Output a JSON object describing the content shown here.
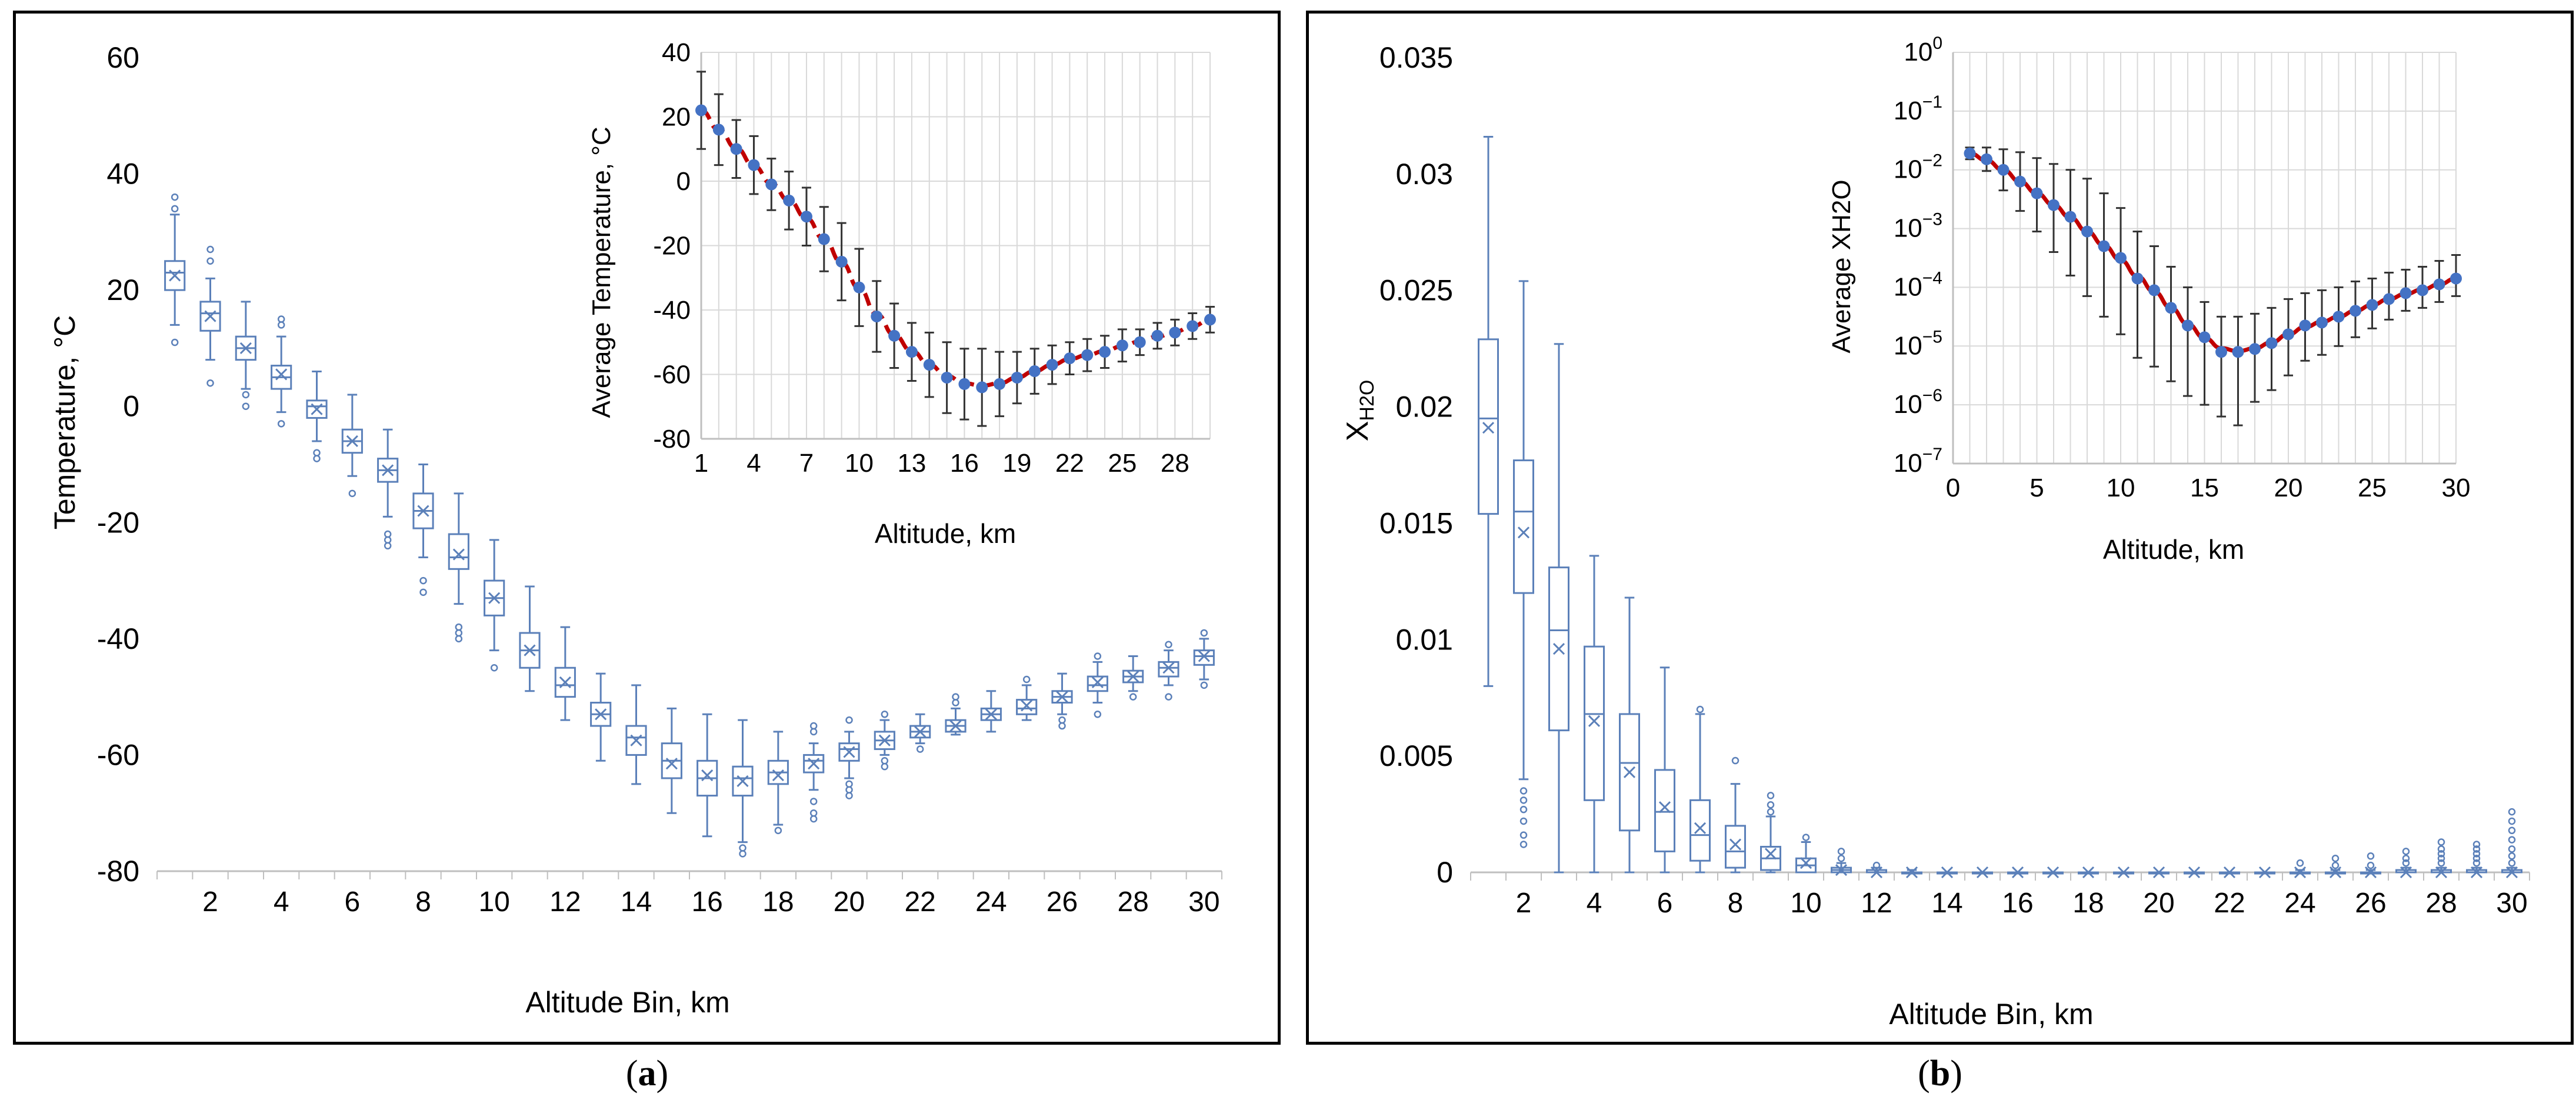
{
  "captions": {
    "a": "a",
    "b": "b"
  },
  "colors": {
    "box": "#5b80b9",
    "dot": "#4472c4",
    "fit": "#c00000",
    "err": "#333333",
    "grid": "#d9d9d9"
  },
  "chart_data": [
    {
      "id": "temperature-box",
      "type": "box",
      "xlabel": "Altitude Bin, km",
      "ylabel": "Temperature, °C",
      "ylim": [
        -80,
        60
      ],
      "yticks": [
        60,
        40,
        20,
        0,
        -20,
        -40,
        -60,
        -80
      ],
      "xticks": [
        2,
        4,
        6,
        8,
        10,
        12,
        14,
        16,
        18,
        20,
        22,
        24,
        26,
        28,
        30
      ],
      "categories": [
        1,
        2,
        3,
        4,
        5,
        6,
        7,
        8,
        9,
        10,
        11,
        12,
        13,
        14,
        15,
        16,
        17,
        18,
        19,
        20,
        21,
        22,
        23,
        24,
        25,
        26,
        27,
        28,
        29,
        30
      ],
      "boxes": [
        {
          "min": 14,
          "q1": 20,
          "median": 23,
          "q3": 25,
          "max": 33,
          "mean": 22.5,
          "outliers": [
            11,
            34,
            36
          ]
        },
        {
          "min": 8,
          "q1": 13,
          "median": 16,
          "q3": 18,
          "max": 22,
          "mean": 15.5,
          "outliers": [
            4,
            25,
            27
          ]
        },
        {
          "min": 3,
          "q1": 8,
          "median": 10,
          "q3": 12,
          "max": 18,
          "mean": 10,
          "outliers": [
            0,
            2
          ]
        },
        {
          "min": -1,
          "q1": 3,
          "median": 5,
          "q3": 7,
          "max": 12,
          "mean": 5.5,
          "outliers": [
            -3,
            14,
            15
          ]
        },
        {
          "min": -6,
          "q1": -2,
          "median": 0,
          "q3": 1,
          "max": 6,
          "mean": -0.5,
          "outliers": [
            -8,
            -9
          ]
        },
        {
          "min": -12,
          "q1": -8,
          "median": -6,
          "q3": -4,
          "max": 2,
          "mean": -6,
          "outliers": [
            -15
          ]
        },
        {
          "min": -19,
          "q1": -13,
          "median": -11,
          "q3": -9,
          "max": -4,
          "mean": -11,
          "outliers": [
            -22,
            -23,
            -24
          ]
        },
        {
          "min": -26,
          "q1": -21,
          "median": -18,
          "q3": -15,
          "max": -10,
          "mean": -18,
          "outliers": [
            -30,
            -32
          ]
        },
        {
          "min": -34,
          "q1": -28,
          "median": -26,
          "q3": -22,
          "max": -15,
          "mean": -25.5,
          "outliers": [
            -38,
            -39,
            -40
          ]
        },
        {
          "min": -42,
          "q1": -36,
          "median": -33,
          "q3": -30,
          "max": -23,
          "mean": -33,
          "outliers": [
            -45
          ]
        },
        {
          "min": -49,
          "q1": -45,
          "median": -42,
          "q3": -39,
          "max": -31,
          "mean": -42,
          "outliers": []
        },
        {
          "min": -54,
          "q1": -50,
          "median": -48,
          "q3": -45,
          "max": -38,
          "mean": -47.5,
          "outliers": []
        },
        {
          "min": -61,
          "q1": -55,
          "median": -53,
          "q3": -51,
          "max": -46,
          "mean": -53,
          "outliers": []
        },
        {
          "min": -65,
          "q1": -60,
          "median": -57,
          "q3": -55,
          "max": -48,
          "mean": -57.5,
          "outliers": []
        },
        {
          "min": -70,
          "q1": -64,
          "median": -61,
          "q3": -58,
          "max": -52,
          "mean": -61.5,
          "outliers": []
        },
        {
          "min": -74,
          "q1": -67,
          "median": -64,
          "q3": -61,
          "max": -53,
          "mean": -63.5,
          "outliers": []
        },
        {
          "min": -75,
          "q1": -67,
          "median": -64,
          "q3": -62,
          "max": -54,
          "mean": -64.5,
          "outliers": [
            -76,
            -77
          ]
        },
        {
          "min": -72,
          "q1": -65,
          "median": -63,
          "q3": -61,
          "max": -56,
          "mean": -63.5,
          "outliers": [
            -73
          ]
        },
        {
          "min": -66,
          "q1": -63,
          "median": -61,
          "q3": -60,
          "max": -58,
          "mean": -61.5,
          "outliers": [
            -68,
            -70,
            -71,
            -56,
            -55
          ]
        },
        {
          "min": -64,
          "q1": -61,
          "median": -59,
          "q3": -58,
          "max": -56,
          "mean": -59.5,
          "outliers": [
            -65,
            -66,
            -67,
            -54
          ]
        },
        {
          "min": -60,
          "q1": -59,
          "median": -57.5,
          "q3": -56,
          "max": -54,
          "mean": -57.5,
          "outliers": [
            -61,
            -62,
            -53
          ]
        },
        {
          "min": -58,
          "q1": -57,
          "median": -56,
          "q3": -55,
          "max": -53,
          "mean": -56,
          "outliers": [
            -59
          ]
        },
        {
          "min": -56.5,
          "q1": -56,
          "median": -55,
          "q3": -54,
          "max": -52,
          "mean": -55,
          "outliers": [
            -50,
            -51
          ]
        },
        {
          "min": -56,
          "q1": -54,
          "median": -53,
          "q3": -52,
          "max": -49,
          "mean": -53,
          "outliers": []
        },
        {
          "min": -54,
          "q1": -53,
          "median": -52,
          "q3": -50.5,
          "max": -48,
          "mean": -51.5,
          "outliers": [
            -47
          ]
        },
        {
          "min": -53,
          "q1": -51,
          "median": -50,
          "q3": -49,
          "max": -46,
          "mean": -50,
          "outliers": [
            -54,
            -55
          ]
        },
        {
          "min": -51,
          "q1": -49,
          "median": -48,
          "q3": -46.5,
          "max": -44,
          "mean": -47.5,
          "outliers": [
            -53,
            -43
          ]
        },
        {
          "min": -49,
          "q1": -47.5,
          "median": -46.5,
          "q3": -45.5,
          "max": -43,
          "mean": -46.5,
          "outliers": [
            -50
          ]
        },
        {
          "min": -48,
          "q1": -46.5,
          "median": -45,
          "q3": -44,
          "max": -42,
          "mean": -45,
          "outliers": [
            -50,
            -41
          ]
        },
        {
          "min": -47,
          "q1": -44.5,
          "median": -43,
          "q3": -42,
          "max": -40,
          "mean": -43,
          "outliers": [
            -48,
            -39
          ]
        }
      ]
    },
    {
      "id": "temperature-inset",
      "type": "line",
      "xlabel": "Altitude, km",
      "ylabel": "Average Temperature, °C",
      "ylim": [
        -80,
        40
      ],
      "xlim": [
        1,
        30
      ],
      "yticks": [
        40,
        20,
        0,
        -20,
        -40,
        -60,
        -80
      ],
      "xticks": [
        1,
        4,
        7,
        10,
        13,
        16,
        19,
        22,
        25,
        28
      ],
      "series": [
        {
          "name": "mean",
          "x": [
            1,
            2,
            3,
            4,
            5,
            6,
            7,
            8,
            9,
            10,
            11,
            12,
            13,
            14,
            15,
            16,
            17,
            18,
            19,
            20,
            21,
            22,
            23,
            24,
            25,
            26,
            27,
            28,
            29,
            30
          ],
          "y": [
            22,
            16,
            10,
            5,
            -1,
            -6,
            -11,
            -18,
            -25,
            -33,
            -42,
            -48,
            -53,
            -57,
            -61,
            -63,
            -64,
            -63,
            -61,
            -59,
            -57,
            -55,
            -54,
            -53,
            -51,
            -50,
            -48,
            -47,
            -45,
            -43
          ],
          "err": [
            12,
            11,
            9,
            9,
            8,
            9,
            9,
            10,
            12,
            12,
            11,
            10,
            9,
            10,
            11,
            11,
            12,
            10,
            8,
            7,
            6,
            5,
            5,
            5,
            5,
            4,
            4,
            4,
            4,
            4
          ]
        },
        {
          "name": "fit",
          "style": "dashed"
        }
      ]
    },
    {
      "id": "water-box",
      "type": "box",
      "xlabel": "Altitude Bin, km",
      "ylabel": "XH2O",
      "ylim": [
        0,
        0.035
      ],
      "yticks": [
        "0.035",
        "0.03",
        "0.025",
        "0.02",
        "0.015",
        "0.01",
        "0.005",
        "0"
      ],
      "xticks": [
        2,
        4,
        6,
        8,
        10,
        12,
        14,
        16,
        18,
        20,
        22,
        24,
        26,
        28,
        30
      ],
      "boxes": [
        {
          "min": 0.008,
          "q1": 0.0154,
          "median": 0.0195,
          "q3": 0.0229,
          "max": 0.0316,
          "mean": 0.0191,
          "outliers": []
        },
        {
          "min": 0.004,
          "q1": 0.012,
          "median": 0.0155,
          "q3": 0.0177,
          "max": 0.0254,
          "mean": 0.0146,
          "outliers": [
            0.0035,
            0.0031,
            0.0027,
            0.0022,
            0.0016,
            0.0012
          ]
        },
        {
          "min": 0.0,
          "q1": 0.0061,
          "median": 0.0104,
          "q3": 0.0131,
          "max": 0.0227,
          "mean": 0.0096,
          "outliers": []
        },
        {
          "min": 0.0,
          "q1": 0.0031,
          "median": 0.0068,
          "q3": 0.0097,
          "max": 0.0136,
          "mean": 0.0065,
          "outliers": []
        },
        {
          "min": 0.0,
          "q1": 0.0018,
          "median": 0.0047,
          "q3": 0.0068,
          "max": 0.0118,
          "mean": 0.0043,
          "outliers": []
        },
        {
          "min": 0.0,
          "q1": 0.0009,
          "median": 0.0026,
          "q3": 0.0044,
          "max": 0.0088,
          "mean": 0.0028,
          "outliers": []
        },
        {
          "min": 0.0,
          "q1": 0.0005,
          "median": 0.0016,
          "q3": 0.0031,
          "max": 0.0068,
          "mean": 0.0019,
          "outliers": [
            0.007
          ]
        },
        {
          "min": 0.0,
          "q1": 0.0002,
          "median": 0.0009,
          "q3": 0.002,
          "max": 0.0038,
          "mean": 0.0012,
          "outliers": [
            0.0048
          ]
        },
        {
          "min": 0.0,
          "q1": 0.0001,
          "median": 0.0006,
          "q3": 0.0011,
          "max": 0.0024,
          "mean": 0.0008,
          "outliers": [
            0.0026,
            0.0029,
            0.0033
          ]
        },
        {
          "min": 0.0,
          "q1": 0.0,
          "median": 0.0003,
          "q3": 0.0006,
          "max": 0.0013,
          "mean": 0.0004,
          "outliers": [
            0.0015
          ]
        },
        {
          "min": 0.0,
          "q1": 0.0,
          "median": 0.0001,
          "q3": 0.0002,
          "max": 0.0004,
          "mean": 0.0001,
          "outliers": [
            0.0006,
            0.0009
          ]
        },
        {
          "min": 0.0,
          "q1": 0.0,
          "median": 0.0,
          "q3": 0.0001,
          "max": 0.0002,
          "mean": 0.0,
          "outliers": [
            0.0003
          ]
        },
        {
          "min": 0.0,
          "q1": 0.0,
          "median": 0.0,
          "q3": 0.0,
          "max": 0.0001,
          "mean": 0.0,
          "outliers": []
        },
        {
          "min": 0.0,
          "q1": 0.0,
          "median": 0.0,
          "q3": 0.0,
          "max": 0.0,
          "mean": 0.0,
          "outliers": []
        },
        {
          "min": 0.0,
          "q1": 0.0,
          "median": 0.0,
          "q3": 0.0,
          "max": 0.0,
          "mean": 0.0,
          "outliers": []
        },
        {
          "min": 0.0,
          "q1": 0.0,
          "median": 0.0,
          "q3": 0.0,
          "max": 0.0,
          "mean": 0.0,
          "outliers": []
        },
        {
          "min": 0.0,
          "q1": 0.0,
          "median": 0.0,
          "q3": 0.0,
          "max": 0.0,
          "mean": 0.0,
          "outliers": []
        },
        {
          "min": 0.0,
          "q1": 0.0,
          "median": 0.0,
          "q3": 0.0,
          "max": 0.0,
          "mean": 0.0,
          "outliers": []
        },
        {
          "min": 0.0,
          "q1": 0.0,
          "median": 0.0,
          "q3": 0.0,
          "max": 0.0,
          "mean": 0.0,
          "outliers": []
        },
        {
          "min": 0.0,
          "q1": 0.0,
          "median": 0.0,
          "q3": 0.0,
          "max": 0.0,
          "mean": 0.0,
          "outliers": []
        },
        {
          "min": 0.0,
          "q1": 0.0,
          "median": 0.0,
          "q3": 0.0,
          "max": 0.0,
          "mean": 0.0,
          "outliers": []
        },
        {
          "min": 0.0,
          "q1": 0.0,
          "median": 0.0,
          "q3": 0.0,
          "max": 0.0,
          "mean": 0.0,
          "outliers": []
        },
        {
          "min": 0.0,
          "q1": 0.0,
          "median": 0.0,
          "q3": 0.0,
          "max": 0.0,
          "mean": 0.0,
          "outliers": []
        },
        {
          "min": 0.0,
          "q1": 0.0,
          "median": 0.0,
          "q3": 0.0,
          "max": 0.0001,
          "mean": 0.0,
          "outliers": [
            0.0004
          ]
        },
        {
          "min": 0.0,
          "q1": 0.0,
          "median": 0.0,
          "q3": 0.0,
          "max": 0.0001,
          "mean": 0.0,
          "outliers": [
            0.0003,
            0.0006
          ]
        },
        {
          "min": 0.0,
          "q1": 0.0,
          "median": 0.0,
          "q3": 0.0,
          "max": 0.0001,
          "mean": 0.0,
          "outliers": [
            0.0003,
            0.0007
          ]
        },
        {
          "min": 0.0,
          "q1": 0.0,
          "median": 0.0,
          "q3": 0.0001,
          "max": 0.0002,
          "mean": 0.0,
          "outliers": [
            0.0004,
            0.0006,
            0.0009
          ]
        },
        {
          "min": 0.0,
          "q1": 0.0,
          "median": 0.0,
          "q3": 0.0001,
          "max": 0.0002,
          "mean": 0.0,
          "outliers": [
            0.0004,
            0.0006,
            0.0008,
            0.001,
            0.0013
          ]
        },
        {
          "min": 0.0,
          "q1": 0.0,
          "median": 0.0,
          "q3": 0.0001,
          "max": 0.0002,
          "mean": 0.0,
          "outliers": [
            0.0004,
            0.0006,
            0.0008,
            0.001,
            0.0012
          ]
        },
        {
          "min": 0.0,
          "q1": 0.0,
          "median": 0.0,
          "q3": 0.0001,
          "max": 0.0002,
          "mean": 0.0,
          "outliers": [
            0.0004,
            0.0007,
            0.001,
            0.0014,
            0.0018,
            0.0022,
            0.0026
          ]
        }
      ]
    },
    {
      "id": "water-inset",
      "type": "line",
      "yscale": "log",
      "xlabel": "Altitude, km",
      "ylabel": "Average XH2O",
      "ylim": [
        -7,
        0
      ],
      "xlim": [
        0,
        30
      ],
      "yticks": [
        0,
        -1,
        -2,
        -3,
        -4,
        -5,
        -6,
        -7
      ],
      "xticks": [
        0,
        5,
        10,
        15,
        20,
        25,
        30
      ],
      "series": [
        {
          "name": "mean",
          "x": [
            1,
            2,
            3,
            4,
            5,
            6,
            7,
            8,
            9,
            10,
            11,
            12,
            13,
            14,
            15,
            16,
            17,
            18,
            19,
            20,
            21,
            22,
            23,
            24,
            25,
            26,
            27,
            28,
            29,
            30
          ],
          "log10y": [
            -1.72,
            -1.82,
            -2.0,
            -2.2,
            -2.4,
            -2.6,
            -2.8,
            -3.05,
            -3.3,
            -3.5,
            -3.85,
            -4.05,
            -4.35,
            -4.65,
            -4.85,
            -5.1,
            -5.1,
            -5.05,
            -4.95,
            -4.8,
            -4.65,
            -4.6,
            -4.5,
            -4.4,
            -4.3,
            -4.2,
            -4.1,
            -4.05,
            -3.95,
            -3.85
          ],
          "err_low": [
            0.1,
            0.2,
            0.35,
            0.5,
            0.65,
            0.8,
            1.0,
            1.1,
            1.2,
            1.3,
            1.35,
            1.3,
            1.25,
            1.2,
            1.15,
            1.1,
            1.25,
            0.9,
            0.8,
            0.7,
            0.6,
            0.55,
            0.5,
            0.45,
            0.4,
            0.35,
            0.3,
            0.3,
            0.3,
            0.3
          ],
          "err_high": [
            0.1,
            0.2,
            0.35,
            0.5,
            0.6,
            0.7,
            0.8,
            0.9,
            0.9,
            0.85,
            0.8,
            0.75,
            0.7,
            0.65,
            0.6,
            0.6,
            0.6,
            0.6,
            0.6,
            0.6,
            0.55,
            0.55,
            0.5,
            0.5,
            0.45,
            0.45,
            0.4,
            0.4,
            0.4,
            0.4
          ]
        },
        {
          "name": "fit",
          "style": "solid"
        }
      ]
    }
  ]
}
